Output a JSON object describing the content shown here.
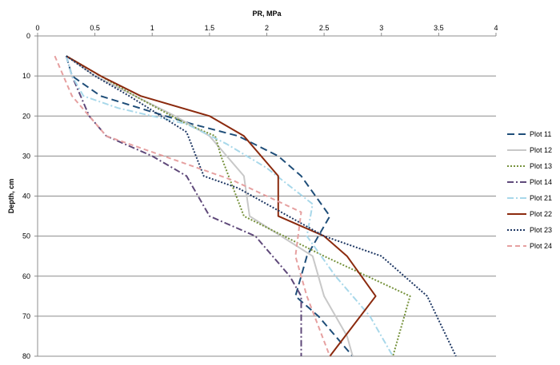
{
  "chart_data": {
    "type": "line",
    "xlabel": "PR, MPa",
    "ylabel": "Depth, cm",
    "xlim": [
      0,
      4
    ],
    "ylim": [
      0,
      80
    ],
    "y_inverted": true,
    "x_axis_position": "top",
    "x_ticks": [
      "0",
      "0.5",
      "1",
      "1.5",
      "2",
      "2.5",
      "3",
      "3.5",
      "4"
    ],
    "y_ticks": [
      "0",
      "10",
      "20",
      "30",
      "40",
      "50",
      "60",
      "70",
      "80"
    ],
    "grid": "horizontal",
    "legend_position": "right",
    "series": [
      {
        "name": "Plot 11",
        "color": "#1f4e79",
        "dash": "long-dash",
        "points": [
          [
            0.25,
            5
          ],
          [
            0.3,
            10
          ],
          [
            0.55,
            15
          ],
          [
            1.0,
            19
          ],
          [
            1.35,
            22
          ],
          [
            1.75,
            25
          ],
          [
            2.1,
            30
          ],
          [
            2.3,
            35
          ],
          [
            2.55,
            45
          ],
          [
            2.35,
            55
          ],
          [
            2.25,
            65
          ],
          [
            2.45,
            70
          ],
          [
            2.75,
            80
          ]
        ]
      },
      {
        "name": "Plot 12",
        "color": "#c8c8c8",
        "dash": "solid",
        "points": [
          [
            0.25,
            5
          ],
          [
            0.5,
            10
          ],
          [
            0.85,
            15
          ],
          [
            1.2,
            20
          ],
          [
            1.5,
            25
          ],
          [
            1.8,
            35
          ],
          [
            1.85,
            45
          ],
          [
            2.4,
            55
          ],
          [
            2.5,
            65
          ],
          [
            2.7,
            75
          ],
          [
            2.75,
            80
          ]
        ]
      },
      {
        "name": "Plot 13",
        "color": "#76923c",
        "dash": "dotted",
        "points": [
          [
            0.25,
            5
          ],
          [
            0.55,
            10
          ],
          [
            0.85,
            15
          ],
          [
            1.3,
            22
          ],
          [
            1.55,
            25
          ],
          [
            1.6,
            30
          ],
          [
            1.8,
            45
          ],
          [
            2.5,
            55
          ],
          [
            3.25,
            65
          ],
          [
            3.1,
            80
          ]
        ]
      },
      {
        "name": "Plot 14",
        "color": "#5f497a",
        "dash": "dash-dot",
        "points": [
          [
            0.25,
            5
          ],
          [
            0.3,
            10
          ],
          [
            0.45,
            20
          ],
          [
            0.6,
            25
          ],
          [
            1.0,
            30
          ],
          [
            1.3,
            35
          ],
          [
            1.5,
            45
          ],
          [
            1.9,
            50
          ],
          [
            2.2,
            60
          ],
          [
            2.3,
            65
          ],
          [
            2.3,
            80
          ]
        ]
      },
      {
        "name": "Plot 21",
        "color": "#a8d8ea",
        "dash": "dash-dot",
        "points": [
          [
            0.25,
            5
          ],
          [
            0.3,
            10
          ],
          [
            0.4,
            15
          ],
          [
            0.7,
            18
          ],
          [
            1.3,
            22
          ],
          [
            1.65,
            27
          ],
          [
            2.0,
            33
          ],
          [
            2.4,
            42
          ],
          [
            2.35,
            50
          ],
          [
            2.6,
            60
          ],
          [
            2.9,
            70
          ],
          [
            3.1,
            80
          ]
        ]
      },
      {
        "name": "Plot 22",
        "color": "#8b2a0e",
        "dash": "solid",
        "points": [
          [
            0.25,
            5
          ],
          [
            0.55,
            10
          ],
          [
            0.9,
            15
          ],
          [
            1.5,
            20
          ],
          [
            1.8,
            25
          ],
          [
            2.1,
            35
          ],
          [
            2.1,
            45
          ],
          [
            2.5,
            50
          ],
          [
            2.7,
            55
          ],
          [
            2.95,
            65
          ],
          [
            2.55,
            80
          ]
        ]
      },
      {
        "name": "Plot 23",
        "color": "#1f3864",
        "dash": "dotted",
        "points": [
          [
            0.25,
            5
          ],
          [
            0.5,
            10
          ],
          [
            0.8,
            15
          ],
          [
            1.3,
            24
          ],
          [
            1.45,
            35
          ],
          [
            1.75,
            38
          ],
          [
            2.5,
            50
          ],
          [
            3.0,
            55
          ],
          [
            3.4,
            65
          ],
          [
            3.65,
            80
          ]
        ]
      },
      {
        "name": "Plot 24",
        "color": "#e6a0a0",
        "dash": "dashed",
        "points": [
          [
            0.15,
            5
          ],
          [
            0.3,
            15
          ],
          [
            0.6,
            25
          ],
          [
            1.1,
            30
          ],
          [
            1.7,
            36
          ],
          [
            2.3,
            44
          ],
          [
            2.25,
            55
          ],
          [
            2.35,
            65
          ],
          [
            2.55,
            80
          ]
        ]
      }
    ]
  }
}
